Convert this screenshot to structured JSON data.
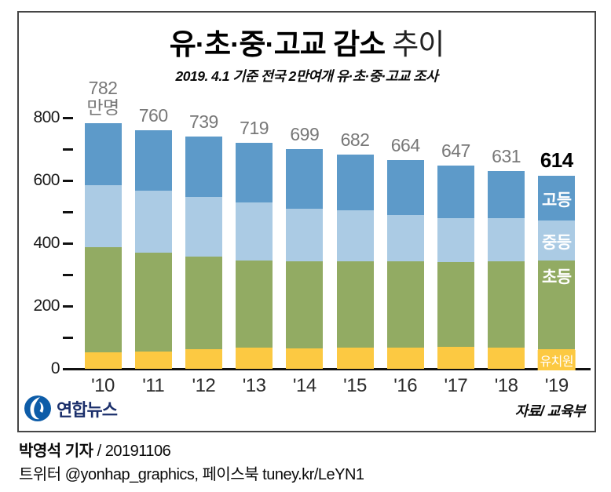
{
  "header": {
    "title_bold": "유·초·중·고교 감소",
    "title_light": "추이",
    "subtitle": "2019. 4.1 기준 전국 2만여개 유·초·중·고교 조사"
  },
  "chart_data": {
    "type": "bar",
    "stacked": true,
    "title": "유·초·중·고교 감소 추이",
    "unit": "만명",
    "categories": [
      "'10",
      "'11",
      "'12",
      "'13",
      "'14",
      "'15",
      "'16",
      "'17",
      "'18",
      "'19"
    ],
    "series": [
      {
        "name": "유치원",
        "color": "#fcc942",
        "values": [
          53,
          54,
          63,
          67,
          64,
          68,
          68,
          71,
          68,
          63
        ]
      },
      {
        "name": "초등",
        "color": "#92ab63",
        "values": [
          335,
          317,
          295,
          279,
          279,
          275,
          274,
          268,
          274,
          282
        ]
      },
      {
        "name": "중등",
        "color": "#abcbe4",
        "values": [
          198,
          196,
          190,
          183,
          168,
          161,
          147,
          142,
          137,
          127
        ]
      },
      {
        "name": "고등",
        "color": "#5d9ac9",
        "values": [
          196,
          193,
          191,
          190,
          188,
          178,
          175,
          166,
          152,
          142
        ]
      }
    ],
    "totals": [
      782,
      760,
      739,
      719,
      699,
      682,
      664,
      647,
      631,
      614
    ],
    "first_total_unit": "만명",
    "ylim": [
      0,
      800
    ],
    "yticks": [
      {
        "value": 0,
        "label": "0"
      },
      {
        "value": 100,
        "label": ""
      },
      {
        "value": 200,
        "label": "200"
      },
      {
        "value": 300,
        "label": ""
      },
      {
        "value": 400,
        "label": "400"
      },
      {
        "value": 500,
        "label": ""
      },
      {
        "value": 600,
        "label": "600"
      },
      {
        "value": 700,
        "label": ""
      },
      {
        "value": 800,
        "label": "800"
      }
    ],
    "grid": false,
    "legend_position": "labels-on-last-bar",
    "colors": {
      "total_label": "#787878",
      "last_total_label": "#000000",
      "axis": "#111111",
      "tick_label": "#1a1a1a",
      "x_label": "#2b2b2b"
    }
  },
  "source": "자료/ 교육부",
  "logo": {
    "text": "연합뉴스"
  },
  "footer": {
    "line1_bold": "박영석 기자",
    "line1_rest": " / 20191106",
    "line2": "트위터 @yonhap_graphics, 페이스북 tuney.kr/LeYN1"
  }
}
